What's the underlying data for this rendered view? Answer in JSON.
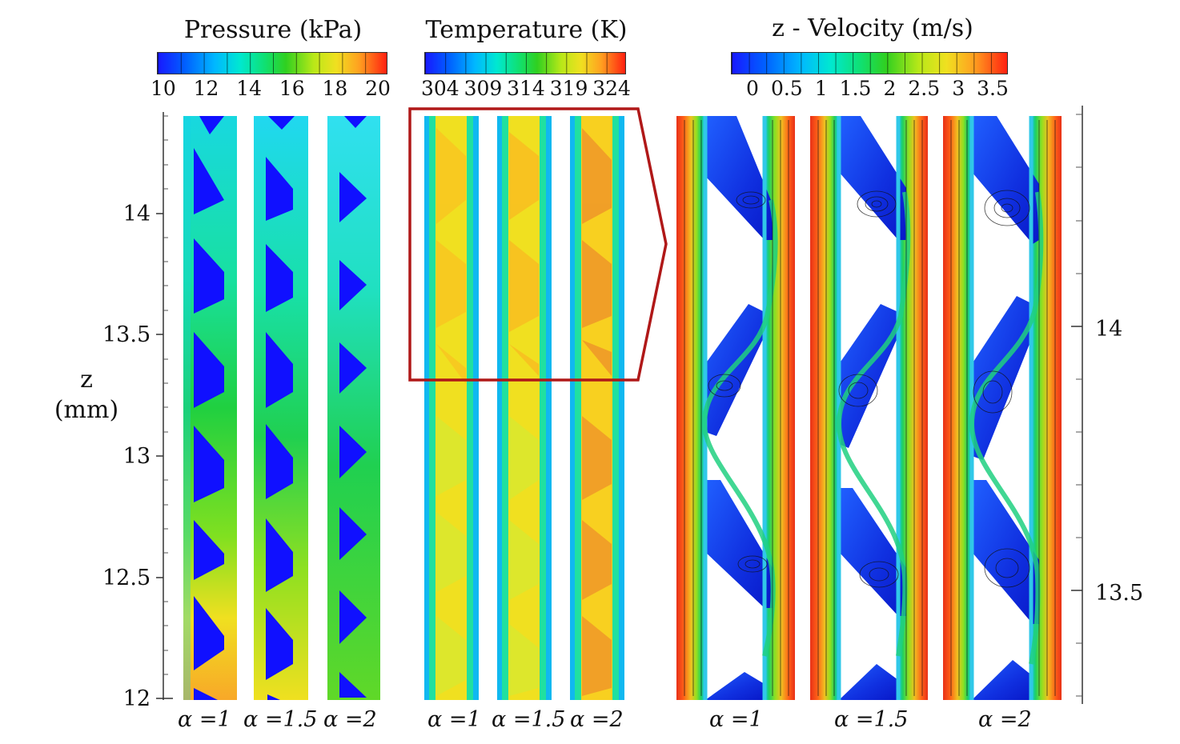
{
  "colorbars": {
    "pressure": {
      "title": "Pressure (kPa)",
      "ticks": [
        "10",
        "12",
        "14",
        "16",
        "18",
        "20"
      ]
    },
    "temperature": {
      "title": "Temperature (K)",
      "ticks": [
        "304",
        "309",
        "314",
        "319",
        "324"
      ]
    },
    "velocity": {
      "title": "z - Velocity (m/s)",
      "ticks": [
        "0",
        "0.5",
        "1",
        "1.5",
        "2",
        "2.5",
        "3",
        "3.5"
      ]
    }
  },
  "left_axis": {
    "title_line1": "z",
    "title_line2": "(mm)",
    "ticks": [
      "14",
      "13.5",
      "13",
      "12.5",
      "12"
    ]
  },
  "right_axis": {
    "ticks": [
      "14",
      "13.5"
    ]
  },
  "panels": {
    "pressure": {
      "labels": [
        "α =1",
        "α =1.5",
        "α =2"
      ]
    },
    "temperature": {
      "labels": [
        "α =1",
        "α =1.5",
        "α =2"
      ]
    },
    "velocity": {
      "labels": [
        "α =1",
        "α =1.5",
        "α =2"
      ]
    }
  },
  "colors": {
    "jet": [
      "#1a1aff",
      "#0a6cff",
      "#00d0f0",
      "#10e0a0",
      "#20d030",
      "#b0e820",
      "#f0e020",
      "#ffa020",
      "#ff3010"
    ],
    "highlight_box": "#b01818"
  }
}
